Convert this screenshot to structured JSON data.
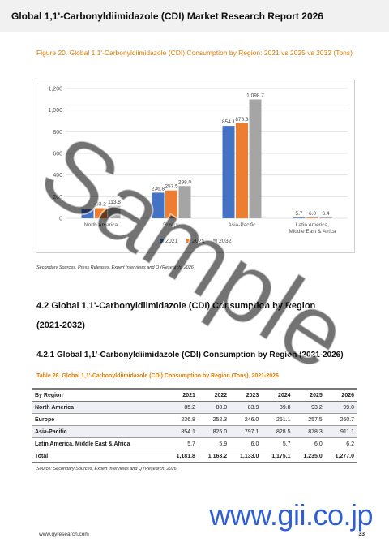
{
  "header": {
    "title": "Global 1,1'-Carbonyldiimidazole (CDI) Market Research Report 2026"
  },
  "figure": {
    "caption": "Figure 20.  Global 1,1'-Carbonyldiimidazole (CDI) Consumption by Region: 2021 vs 2025 vs 2032 (Tons)",
    "source": "Secondary Sources, Press Releases, Expert Interviews and QYResearch, 2026"
  },
  "chart_data": {
    "type": "bar",
    "categories": [
      "North America",
      "Europe",
      "Asia-Pacific",
      "Latin America, Middle East & Africa"
    ],
    "series": [
      {
        "name": "2021",
        "values": [
          85.2,
          236.8,
          854.1,
          5.7
        ],
        "color": "#4472c4"
      },
      {
        "name": "2025",
        "values": [
          93.2,
          257.5,
          878.3,
          6.0
        ],
        "color": "#ed7d31"
      },
      {
        "name": "2032",
        "values": [
          113.8,
          298.0,
          1098.7,
          6.4
        ],
        "color": "#a5a5a5"
      }
    ],
    "data_labels": [
      [
        "",
        "93.2",
        "113.8"
      ],
      [
        "236.8",
        "257.5",
        "298.0"
      ],
      [
        "854.1",
        "878.3",
        "1,098.7"
      ],
      [
        "5.7",
        "6.0",
        "6.4"
      ]
    ],
    "ylim": [
      0,
      1200
    ],
    "yticks": [
      "0",
      "200",
      "400",
      "600",
      "800",
      "1,000",
      "1,200"
    ],
    "grid": true,
    "legend_position": "bottom"
  },
  "sections": {
    "s42_title": "4.2  Global 1,1'-Carbonyldiimidazole (CDI) Consumption by Region",
    "s42_years": "(2021-2032)",
    "s421_title": "4.2.1  Global 1,1'-Carbonyldiimidazole (CDI) Consumption by Region (2021-2026)"
  },
  "table": {
    "caption": "Table 28.  Global 1,1'-Carbonyldiimidazole (CDI) Consumption by Region (Tons), 2021-2026",
    "headers": [
      "By Region",
      "2021",
      "2022",
      "2023",
      "2024",
      "2025",
      "2026"
    ],
    "rows": [
      [
        "North America",
        "85.2",
        "80.0",
        "83.9",
        "89.8",
        "93.2",
        "99.0"
      ],
      [
        "Europe",
        "236.8",
        "252.3",
        "246.0",
        "251.1",
        "257.5",
        "260.7"
      ],
      [
        "Asia-Pacific",
        "854.1",
        "825.0",
        "797.1",
        "828.5",
        "878.3",
        "911.1"
      ],
      [
        "Latin America, Middle East & Africa",
        "5.7",
        "5.9",
        "6.0",
        "5.7",
        "6.0",
        "6.2"
      ],
      [
        "Total",
        "1,181.8",
        "1,163.2",
        "1,133.0",
        "1,175.1",
        "1,235.0",
        "1,277.0"
      ]
    ],
    "source": "Source: Secondary Sources, Expert Interviews and QYResearch, 2026"
  },
  "watermarks": {
    "sample": "Sample",
    "site": "www.gii.co.jp"
  },
  "footer": {
    "url": "www.qyresearch.com",
    "page": "33"
  }
}
